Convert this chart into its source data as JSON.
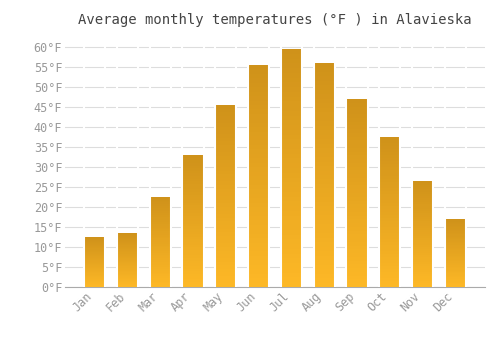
{
  "title": "Average monthly temperatures (°F ) in Alavieska",
  "months": [
    "Jan",
    "Feb",
    "Mar",
    "Apr",
    "May",
    "Jun",
    "Jul",
    "Aug",
    "Sep",
    "Oct",
    "Nov",
    "Dec"
  ],
  "values": [
    12.5,
    13.5,
    22.5,
    33.0,
    45.5,
    55.5,
    59.5,
    56.0,
    47.0,
    37.5,
    26.5,
    17.0
  ],
  "bar_color_top": "#F5A623",
  "bar_color_bottom": "#FFD060",
  "background_color": "#ffffff",
  "grid_color": "#dddddd",
  "text_color": "#999999",
  "ylim": [
    0,
    63
  ],
  "yticks": [
    0,
    5,
    10,
    15,
    20,
    25,
    30,
    35,
    40,
    45,
    50,
    55,
    60
  ],
  "title_fontsize": 10,
  "tick_fontsize": 8.5
}
